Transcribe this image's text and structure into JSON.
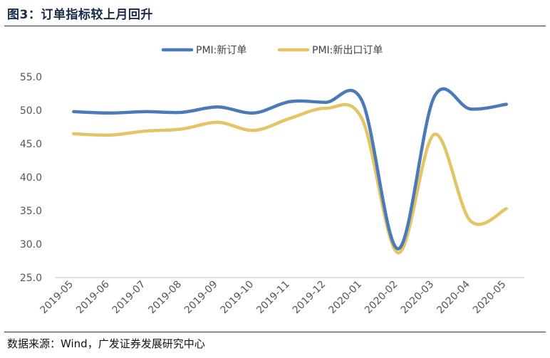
{
  "header": {
    "title": "图3：订单指标较上月回升"
  },
  "footer": {
    "source": "数据来源：Wind，广发证券发展研究中心"
  },
  "chart_data": {
    "type": "line",
    "title": "图3：订单指标较上月回升",
    "categories": [
      "2019-05",
      "2019-06",
      "2019-07",
      "2019-08",
      "2019-09",
      "2019-10",
      "2019-11",
      "2019-12",
      "2020-01",
      "2020-02",
      "2020-03",
      "2020-04",
      "2020-05"
    ],
    "series": [
      {
        "name": "PMI:新订单",
        "color": "#4a7ab8",
        "values": [
          49.8,
          49.6,
          49.8,
          49.7,
          50.5,
          49.6,
          51.3,
          51.2,
          51.4,
          29.3,
          52.0,
          50.2,
          50.9
        ]
      },
      {
        "name": "PMI:新出口订单",
        "color": "#e3c566",
        "values": [
          46.5,
          46.3,
          46.9,
          47.2,
          48.2,
          47.0,
          48.8,
          50.3,
          48.7,
          28.7,
          46.4,
          33.5,
          35.3
        ]
      }
    ],
    "yticks": [
      "55.0",
      "50.0",
      "45.0",
      "40.0",
      "35.0",
      "30.0",
      "25.0"
    ],
    "ylim": [
      25,
      55
    ],
    "legend": "top-center",
    "grid": false
  }
}
